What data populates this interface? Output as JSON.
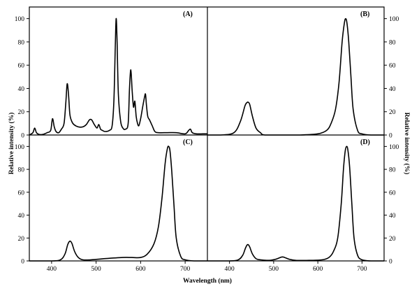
{
  "chart_data": {
    "type": "line",
    "xlabel": "Wavelength (nm)",
    "ylabel_left": "Relative intensity (%)",
    "ylabel_right": "Relative intensity (%)",
    "xlim": [
      350,
      750
    ],
    "ylim": [
      0,
      110
    ],
    "x_ticks": [
      400,
      500,
      600,
      700
    ],
    "y_ticks": [
      0,
      20,
      40,
      60,
      80,
      100
    ],
    "grid": false,
    "legend": "none",
    "panels": [
      {
        "label": "(A)",
        "series": [
          {
            "x": [
              350,
              358,
              362,
              366,
              372,
              380,
              390,
              398,
              402,
              406,
              410,
              416,
              422,
              428,
              432,
              435,
              438,
              441,
              445,
              450,
              460,
              470,
              478,
              485,
              490,
              496,
              502,
              506,
              510,
              514,
              520,
              530,
              536,
              540,
              543,
              545,
              547,
              550,
              555,
              560,
              566,
              572,
              575,
              578,
              581,
              584,
              587,
              590,
              593,
              596,
              600,
              605,
              609,
              611,
              613,
              616,
              620,
              626,
              632,
              640,
              660,
              680,
              700,
              708,
              712,
              716,
              725,
              740,
              750
            ],
            "y": [
              0,
              2,
              6,
              2,
              0.5,
              0.5,
              2,
              4,
              14,
              7,
              3,
              2,
              5,
              10,
              28,
              44,
              35,
              18,
              12,
              9,
              7,
              7,
              9,
              13,
              13,
              9,
              6,
              9,
              5,
              4,
              3,
              4,
              8,
              30,
              75,
              100,
              82,
              35,
              12,
              6,
              5,
              10,
              40,
              56,
              38,
              24,
              29,
              16,
              10,
              8,
              14,
              25,
              33,
              35,
              26,
              16,
              13,
              8,
              3,
              2,
              2,
              2,
              1,
              4,
              5,
              2,
              1,
              1,
              1
            ]
          }
        ]
      },
      {
        "label": "(B)",
        "series": [
          {
            "x": [
              350,
              380,
              410,
              425,
              435,
              440,
              443,
              446,
              452,
              460,
              470,
              480,
              520,
              560,
              600,
              620,
              630,
              640,
              648,
              655,
              660,
              663,
              666,
              670,
              675,
              680,
              690,
              700,
              720,
              750
            ],
            "y": [
              0,
              0,
              2,
              12,
              25,
              28,
              28,
              26,
              16,
              6,
              2,
              0,
              0,
              0,
              1,
              4,
              10,
              22,
              45,
              80,
              96,
              100,
              96,
              80,
              50,
              22,
              4,
              1,
              0,
              0
            ]
          }
        ]
      },
      {
        "label": "(C)",
        "series": [
          {
            "x": [
              350,
              400,
              420,
              430,
              436,
              440,
              443,
              446,
              452,
              460,
              470,
              490,
              520,
              560,
              580,
              600,
              615,
              630,
              640,
              648,
              655,
              660,
              663,
              666,
              670,
              675,
              680,
              690,
              700,
              720,
              750
            ],
            "y": [
              0,
              0,
              1,
              6,
              14,
              17,
              17,
              15,
              8,
              3,
              1,
              1,
              2,
              3,
              3,
              3,
              6,
              15,
              30,
              55,
              85,
              98,
              100,
              96,
              78,
              48,
              20,
              4,
              1,
              0,
              0
            ]
          }
        ]
      },
      {
        "label": "(D)",
        "series": [
          {
            "x": [
              350,
              400,
              420,
              430,
              436,
              440,
              443,
              446,
              452,
              460,
              470,
              490,
              505,
              515,
              520,
              525,
              535,
              550,
              580,
              610,
              625,
              635,
              645,
              653,
              658,
              662,
              665,
              668,
              672,
              677,
              682,
              690,
              700,
              720,
              750
            ],
            "y": [
              0,
              0,
              1,
              5,
              11,
              14,
              14,
              12,
              6,
              2,
              1,
              0.5,
              1.5,
              3,
              3.5,
              3,
              1.5,
              0.5,
              0.5,
              1,
              3,
              8,
              20,
              50,
              80,
              96,
              100,
              97,
              82,
              50,
              20,
              5,
              1,
              0,
              0
            ]
          }
        ]
      }
    ]
  }
}
